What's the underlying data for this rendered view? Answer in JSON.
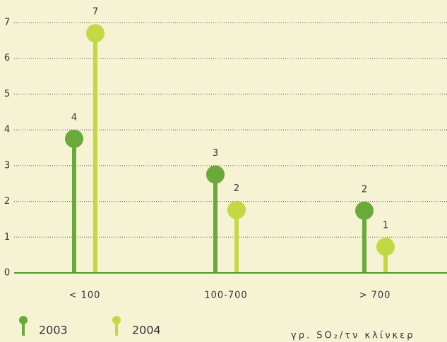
{
  "chart_data": {
    "type": "lollipop",
    "categories": [
      "< 100",
      "100-700",
      "> 700"
    ],
    "series": [
      {
        "name": "2003",
        "color": "#6aaa3a",
        "values": [
          3.75,
          2.75,
          1.74
        ],
        "value_labels": [
          "4",
          "3",
          "2"
        ]
      },
      {
        "name": "2004",
        "color": "#c2d944",
        "values": [
          6.7,
          1.76,
          0.73
        ],
        "value_labels": [
          "7",
          "2",
          "1"
        ]
      }
    ],
    "ylim": [
      0,
      7
    ],
    "yticks": [
      0,
      1,
      2,
      3,
      4,
      5,
      6,
      7
    ],
    "grid": true,
    "annotation": "γρ. SO₂/τν κλίνκερ"
  }
}
